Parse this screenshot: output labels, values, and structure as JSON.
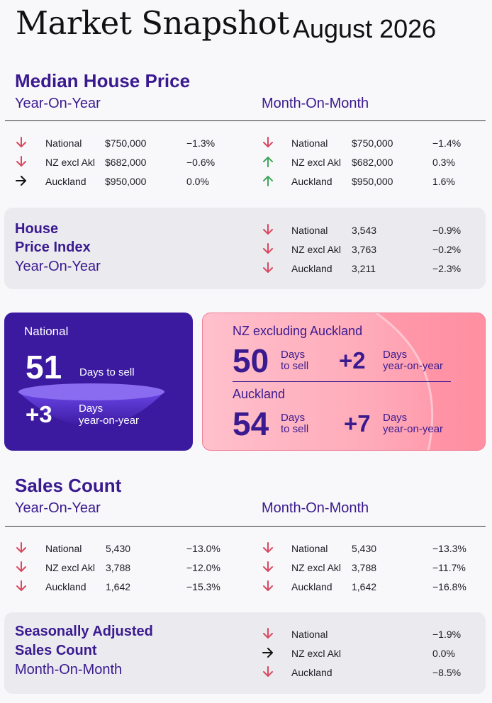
{
  "header": {
    "title": "Market Snapshot",
    "date": "August 2026"
  },
  "median": {
    "heading": "Median House Price",
    "yoy_label": "Year-On-Year",
    "mom_label": "Month-On-Month",
    "yoy": [
      {
        "direction": "down",
        "region": "National",
        "value": "$750,000",
        "change": "−1.3%"
      },
      {
        "direction": "down",
        "region": "NZ excl Akl",
        "value": "$682,000",
        "change": "−0.6%"
      },
      {
        "direction": "flat",
        "region": "Auckland",
        "value": "$950,000",
        "change": "0.0%"
      }
    ],
    "mom": [
      {
        "direction": "down",
        "region": "National",
        "value": "$750,000",
        "change": "−1.4%"
      },
      {
        "direction": "up",
        "region": "NZ excl Akl",
        "value": "$682,000",
        "change": "0.3%"
      },
      {
        "direction": "up",
        "region": "Auckland",
        "value": "$950,000",
        "change": "1.6%"
      }
    ]
  },
  "hpi": {
    "line1": "House",
    "line2": "Price Index",
    "line3": "Year-On-Year",
    "rows": [
      {
        "direction": "down",
        "region": "National",
        "value": "3,543",
        "change": "−0.9%"
      },
      {
        "direction": "down",
        "region": "NZ excl Akl",
        "value": "3,763",
        "change": "−0.2%"
      },
      {
        "direction": "down",
        "region": "Auckland",
        "value": "3,211",
        "change": "−2.3%"
      }
    ]
  },
  "days": {
    "national": {
      "label": "National",
      "days": "51",
      "days_label": "Days to sell",
      "change": "+3",
      "change_label1": "Days",
      "change_label2": "year-on-year"
    },
    "nz_excl": {
      "label": "NZ excluding Auckland",
      "days": "50",
      "days_label1": "Days",
      "days_label2": "to sell",
      "change": "+2",
      "change_label1": "Days",
      "change_label2": "year-on-year"
    },
    "auckland": {
      "label": "Auckland",
      "days": "54",
      "days_label1": "Days",
      "days_label2": "to sell",
      "change": "+7",
      "change_label1": "Days",
      "change_label2": "year-on-year"
    }
  },
  "sales": {
    "heading": "Sales Count",
    "yoy_label": "Year-On-Year",
    "mom_label": "Month-On-Month",
    "yoy": [
      {
        "direction": "down",
        "region": "National",
        "value": "5,430",
        "change": "−13.0%"
      },
      {
        "direction": "down",
        "region": "NZ excl Akl",
        "value": "3,788",
        "change": "−12.0%"
      },
      {
        "direction": "down",
        "region": "Auckland",
        "value": "1,642",
        "change": "−15.3%"
      }
    ],
    "mom": [
      {
        "direction": "down",
        "region": "National",
        "value": "5,430",
        "change": "−13.3%"
      },
      {
        "direction": "down",
        "region": "NZ excl Akl",
        "value": "3,788",
        "change": "−11.7%"
      },
      {
        "direction": "down",
        "region": "Auckland",
        "value": "1,642",
        "change": "−16.8%"
      }
    ]
  },
  "seasonal": {
    "line1": "Seasonally Adjusted",
    "line2": "Sales Count",
    "line3": "Month-On-Month",
    "rows": [
      {
        "direction": "down",
        "region": "National",
        "change": "−1.9%"
      },
      {
        "direction": "flat",
        "region": "NZ excl Akl",
        "change": "0.0%"
      },
      {
        "direction": "down",
        "region": "Auckland",
        "change": "−8.5%"
      }
    ]
  },
  "colors": {
    "down": "#d9485f",
    "up": "#3fa75a",
    "flat": "#111111",
    "heading": "#3a1a8f",
    "card_purple": "#3b1aa0",
    "card_pink": "#ffaab9"
  },
  "icons": {
    "down": "arrow-down-icon",
    "up": "arrow-up-icon",
    "flat": "arrow-right-icon"
  }
}
